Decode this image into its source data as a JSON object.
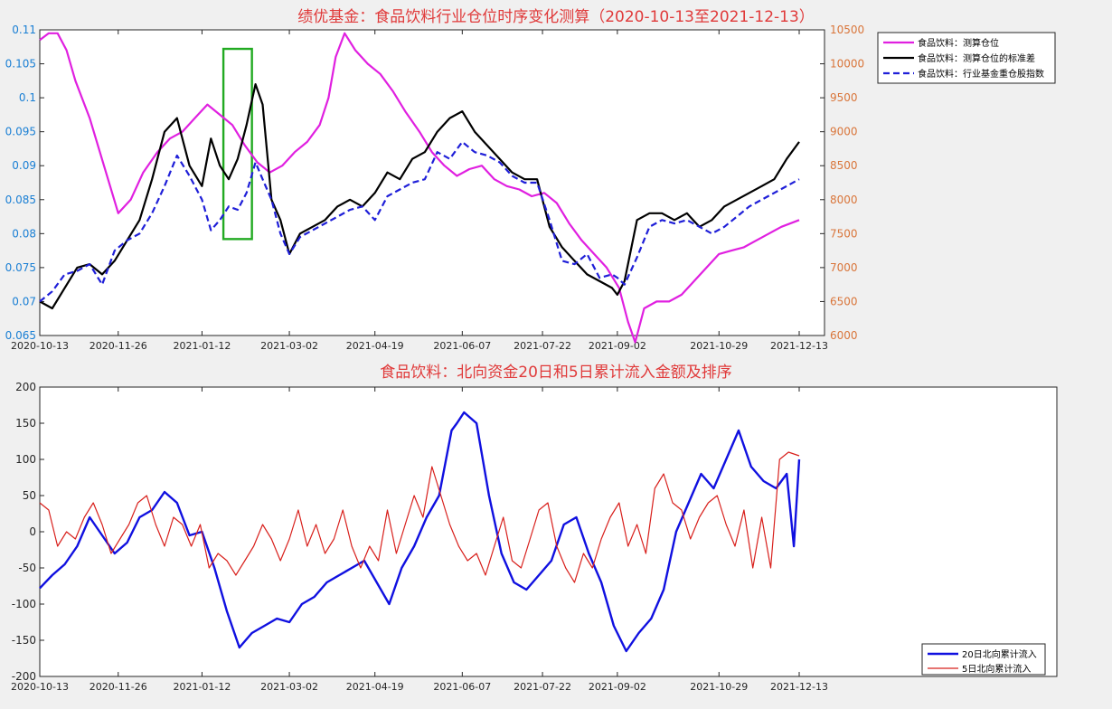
{
  "chart_data": [
    {
      "type": "line",
      "title": "绩优基金：食品饮料行业仓位时序变化测算（2020-10-13至2021-12-13）",
      "x_ticks": [
        "2020-10-13",
        "2020-11-26",
        "2021-01-12",
        "2021-03-02",
        "2021-04-19",
        "2021-06-07",
        "2021-07-22",
        "2021-09-02",
        "2021-10-29",
        "2021-12-13"
      ],
      "x_range": [
        "2020-10-13",
        "2021-12-13"
      ],
      "y_left_ticks": [
        "0.065",
        "0.07",
        "0.075",
        "0.08",
        "0.085",
        "0.09",
        "0.095",
        "0.1",
        "0.105",
        "0.11"
      ],
      "y_left_lim": [
        0.065,
        0.11
      ],
      "y_right_ticks": [
        "6000",
        "6500",
        "7000",
        "7500",
        "8000",
        "8500",
        "9000",
        "9500",
        "10000",
        "10500"
      ],
      "y_right_lim": [
        6000,
        10500
      ],
      "legend": {
        "placement": "top-right"
      },
      "highlight_box": {
        "x": [
          "2021-01-24",
          "2021-02-09"
        ],
        "y": [
          0.0792,
          0.1072
        ],
        "color": "#22aa22"
      },
      "series": [
        {
          "name": "食品饮料：测算仓位",
          "axis": "left",
          "color": "#e020e0",
          "style": "solid",
          "x": [
            "2020-10-13",
            "2020-10-18",
            "2020-10-23",
            "2020-10-28",
            "2020-11-02",
            "2020-11-10",
            "2020-11-18",
            "2020-11-26",
            "2020-12-03",
            "2020-12-10",
            "2020-12-18",
            "2020-12-25",
            "2021-01-01",
            "2021-01-08",
            "2021-01-15",
            "2021-01-22",
            "2021-01-29",
            "2021-02-05",
            "2021-02-12",
            "2021-02-19",
            "2021-02-26",
            "2021-03-05",
            "2021-03-12",
            "2021-03-19",
            "2021-03-24",
            "2021-03-28",
            "2021-04-02",
            "2021-04-08",
            "2021-04-15",
            "2021-04-22",
            "2021-04-29",
            "2021-05-06",
            "2021-05-14",
            "2021-05-21",
            "2021-05-28",
            "2021-06-04",
            "2021-06-11",
            "2021-06-18",
            "2021-06-25",
            "2021-07-02",
            "2021-07-09",
            "2021-07-16",
            "2021-07-23",
            "2021-07-30",
            "2021-08-06",
            "2021-08-13",
            "2021-08-20",
            "2021-08-27",
            "2021-09-03",
            "2021-09-08",
            "2021-09-12",
            "2021-09-17",
            "2021-09-24",
            "2021-10-01",
            "2021-10-08",
            "2021-10-15",
            "2021-10-22",
            "2021-10-29",
            "2021-11-05",
            "2021-11-12",
            "2021-11-19",
            "2021-11-26",
            "2021-12-03",
            "2021-12-13"
          ],
          "y": [
            0.1085,
            0.1095,
            0.1095,
            0.107,
            0.1025,
            0.097,
            0.09,
            0.083,
            0.085,
            0.089,
            0.092,
            0.094,
            0.095,
            0.097,
            0.099,
            0.0975,
            0.096,
            0.093,
            0.0905,
            0.089,
            0.09,
            0.092,
            0.0935,
            0.096,
            0.1,
            0.106,
            0.1095,
            0.107,
            0.105,
            0.1035,
            0.101,
            0.098,
            0.095,
            0.092,
            0.09,
            0.0885,
            0.0895,
            0.09,
            0.088,
            0.087,
            0.0865,
            0.0855,
            0.086,
            0.0845,
            0.0815,
            0.079,
            0.077,
            0.075,
            0.072,
            0.067,
            0.064,
            0.069,
            0.07,
            0.07,
            0.071,
            0.073,
            0.075,
            0.077,
            0.0775,
            0.078,
            0.079,
            0.08,
            0.081,
            0.082
          ]
        },
        {
          "name": "食品饮料：测算仓位的标准差",
          "axis": "left",
          "color": "#000000",
          "style": "solid",
          "x": [
            "2020-10-13",
            "2020-10-20",
            "2020-10-27",
            "2020-11-03",
            "2020-11-10",
            "2020-11-17",
            "2020-11-24",
            "2020-12-01",
            "2020-12-08",
            "2020-12-15",
            "2020-12-22",
            "2020-12-29",
            "2021-01-05",
            "2021-01-12",
            "2021-01-17",
            "2021-01-22",
            "2021-01-27",
            "2021-02-01",
            "2021-02-06",
            "2021-02-11",
            "2021-02-15",
            "2021-02-20",
            "2021-02-25",
            "2021-03-02",
            "2021-03-08",
            "2021-03-15",
            "2021-03-22",
            "2021-03-29",
            "2021-04-05",
            "2021-04-12",
            "2021-04-19",
            "2021-04-26",
            "2021-05-03",
            "2021-05-10",
            "2021-05-17",
            "2021-05-24",
            "2021-05-31",
            "2021-06-07",
            "2021-06-14",
            "2021-06-21",
            "2021-06-28",
            "2021-07-05",
            "2021-07-12",
            "2021-07-19",
            "2021-07-26",
            "2021-08-02",
            "2021-08-09",
            "2021-08-16",
            "2021-08-23",
            "2021-08-30",
            "2021-09-02",
            "2021-09-06",
            "2021-09-13",
            "2021-09-20",
            "2021-09-27",
            "2021-10-04",
            "2021-10-11",
            "2021-10-18",
            "2021-10-25",
            "2021-11-01",
            "2021-11-08",
            "2021-11-15",
            "2021-11-22",
            "2021-11-29",
            "2021-12-06",
            "2021-12-13"
          ],
          "y": [
            0.07,
            0.069,
            0.072,
            0.075,
            0.0755,
            0.074,
            0.076,
            0.079,
            0.082,
            0.088,
            0.095,
            0.097,
            0.09,
            0.087,
            0.094,
            0.09,
            0.088,
            0.091,
            0.096,
            0.102,
            0.099,
            0.085,
            0.082,
            0.077,
            0.08,
            0.081,
            0.082,
            0.084,
            0.085,
            0.084,
            0.086,
            0.089,
            0.088,
            0.091,
            0.092,
            0.095,
            0.097,
            0.098,
            0.095,
            0.093,
            0.091,
            0.089,
            0.088,
            0.088,
            0.081,
            0.078,
            0.076,
            0.074,
            0.073,
            0.072,
            0.071,
            0.073,
            0.082,
            0.083,
            0.083,
            0.082,
            0.083,
            0.081,
            0.082,
            0.084,
            0.085,
            0.086,
            0.087,
            0.088,
            0.091,
            0.0935
          ]
        },
        {
          "name": "食品饮料：行业基金重仓股指数",
          "axis": "right",
          "color": "#1f1fd8",
          "style": "dashed",
          "x": [
            "2020-10-13",
            "2020-10-20",
            "2020-10-27",
            "2020-11-03",
            "2020-11-10",
            "2020-11-17",
            "2020-11-24",
            "2020-12-01",
            "2020-12-08",
            "2020-12-15",
            "2020-12-22",
            "2020-12-29",
            "2021-01-05",
            "2021-01-12",
            "2021-01-17",
            "2021-01-22",
            "2021-01-27",
            "2021-02-01",
            "2021-02-06",
            "2021-02-11",
            "2021-02-15",
            "2021-02-20",
            "2021-02-25",
            "2021-03-02",
            "2021-03-08",
            "2021-03-15",
            "2021-03-22",
            "2021-03-29",
            "2021-04-05",
            "2021-04-12",
            "2021-04-19",
            "2021-04-26",
            "2021-05-03",
            "2021-05-10",
            "2021-05-17",
            "2021-05-24",
            "2021-05-31",
            "2021-06-07",
            "2021-06-14",
            "2021-06-21",
            "2021-06-28",
            "2021-07-05",
            "2021-07-12",
            "2021-07-19",
            "2021-07-26",
            "2021-08-02",
            "2021-08-09",
            "2021-08-16",
            "2021-08-23",
            "2021-08-30",
            "2021-09-02",
            "2021-09-06",
            "2021-09-13",
            "2021-09-20",
            "2021-09-27",
            "2021-10-04",
            "2021-10-11",
            "2021-10-18",
            "2021-10-25",
            "2021-11-01",
            "2021-11-08",
            "2021-11-15",
            "2021-11-22",
            "2021-11-29",
            "2021-12-06",
            "2021-12-13"
          ],
          "y": [
            6500,
            6650,
            6900,
            6950,
            7050,
            6750,
            7250,
            7400,
            7500,
            7800,
            8200,
            8650,
            8350,
            8000,
            7550,
            7700,
            7900,
            7850,
            8100,
            8550,
            8300,
            8000,
            7500,
            7200,
            7450,
            7550,
            7650,
            7750,
            7850,
            7900,
            7700,
            8050,
            8150,
            8250,
            8300,
            8700,
            8600,
            8850,
            8700,
            8650,
            8550,
            8350,
            8250,
            8250,
            7700,
            7100,
            7050,
            7200,
            6850,
            6900,
            6850,
            6750,
            7150,
            7600,
            7700,
            7650,
            7700,
            7600,
            7500,
            7600,
            7750,
            7900,
            8000,
            8100,
            8200,
            8300
          ]
        }
      ]
    },
    {
      "type": "line",
      "title": "食品饮料：北向资金20日和5日累计流入金额及排序",
      "x_ticks": [
        "2020-10-13",
        "2020-11-26",
        "2021-01-12",
        "2021-03-02",
        "2021-04-19",
        "2021-06-07",
        "2021-07-22",
        "2021-09-02",
        "2021-10-29",
        "2021-12-13"
      ],
      "x_range": [
        "2020-10-13",
        "2021-12-13"
      ],
      "y_ticks": [
        "-200",
        "-150",
        "-100",
        "-50",
        "0",
        "50",
        "100",
        "150",
        "200"
      ],
      "ylim": [
        -200,
        200
      ],
      "legend": {
        "placement": "bottom-right"
      },
      "series": [
        {
          "name": "20日北向累计流入",
          "color": "#1010e0",
          "width": 2.4,
          "x": [
            "2020-10-13",
            "2020-10-20",
            "2020-10-27",
            "2020-11-03",
            "2020-11-10",
            "2020-11-17",
            "2020-11-24",
            "2020-12-01",
            "2020-12-08",
            "2020-12-15",
            "2020-12-22",
            "2020-12-29",
            "2021-01-05",
            "2021-01-12",
            "2021-01-19",
            "2021-01-26",
            "2021-02-02",
            "2021-02-09",
            "2021-02-16",
            "2021-02-23",
            "2021-03-02",
            "2021-03-09",
            "2021-03-16",
            "2021-03-23",
            "2021-03-30",
            "2021-04-06",
            "2021-04-13",
            "2021-04-20",
            "2021-04-27",
            "2021-05-04",
            "2021-05-11",
            "2021-05-18",
            "2021-05-25",
            "2021-06-01",
            "2021-06-04",
            "2021-06-08",
            "2021-06-15",
            "2021-06-22",
            "2021-06-29",
            "2021-07-06",
            "2021-07-13",
            "2021-07-20",
            "2021-07-27",
            "2021-08-03",
            "2021-08-10",
            "2021-08-17",
            "2021-08-24",
            "2021-08-31",
            "2021-09-07",
            "2021-09-14",
            "2021-09-21",
            "2021-09-28",
            "2021-10-05",
            "2021-10-12",
            "2021-10-19",
            "2021-10-26",
            "2021-11-02",
            "2021-11-09",
            "2021-11-16",
            "2021-11-23",
            "2021-11-30",
            "2021-12-06",
            "2021-12-10",
            "2021-12-13"
          ],
          "y": [
            -78,
            -60,
            -45,
            -20,
            20,
            -5,
            -30,
            -15,
            20,
            30,
            55,
            40,
            -5,
            0,
            -50,
            -110,
            -160,
            -140,
            -130,
            -120,
            -125,
            -100,
            -90,
            -70,
            -60,
            -50,
            -40,
            -70,
            -100,
            -50,
            -20,
            20,
            50,
            140,
            150,
            165,
            150,
            50,
            -30,
            -70,
            -80,
            -60,
            -40,
            10,
            20,
            -30,
            -70,
            -130,
            -165,
            -140,
            -120,
            -80,
            0,
            40,
            80,
            60,
            100,
            140,
            90,
            70,
            60,
            80,
            -20,
            100
          ]
        },
        {
          "name": "5日北向累计流入",
          "color": "#d8201c",
          "width": 1.2,
          "x": [
            "2020-10-13",
            "2020-10-18",
            "2020-10-23",
            "2020-10-28",
            "2020-11-02",
            "2020-11-07",
            "2020-11-12",
            "2020-11-17",
            "2020-11-22",
            "2020-11-27",
            "2020-12-02",
            "2020-12-07",
            "2020-12-12",
            "2020-12-17",
            "2020-12-22",
            "2020-12-27",
            "2021-01-01",
            "2021-01-06",
            "2021-01-11",
            "2021-01-16",
            "2021-01-21",
            "2021-01-26",
            "2021-01-31",
            "2021-02-05",
            "2021-02-10",
            "2021-02-15",
            "2021-02-20",
            "2021-02-25",
            "2021-03-02",
            "2021-03-07",
            "2021-03-12",
            "2021-03-17",
            "2021-03-22",
            "2021-03-27",
            "2021-04-01",
            "2021-04-06",
            "2021-04-11",
            "2021-04-16",
            "2021-04-21",
            "2021-04-26",
            "2021-05-01",
            "2021-05-06",
            "2021-05-11",
            "2021-05-16",
            "2021-05-21",
            "2021-05-26",
            "2021-05-31",
            "2021-06-05",
            "2021-06-10",
            "2021-06-15",
            "2021-06-20",
            "2021-06-25",
            "2021-06-30",
            "2021-07-05",
            "2021-07-10",
            "2021-07-15",
            "2021-07-20",
            "2021-07-25",
            "2021-07-30",
            "2021-08-04",
            "2021-08-09",
            "2021-08-14",
            "2021-08-19",
            "2021-08-24",
            "2021-08-29",
            "2021-09-03",
            "2021-09-08",
            "2021-09-13",
            "2021-09-18",
            "2021-09-23",
            "2021-09-28",
            "2021-10-03",
            "2021-10-08",
            "2021-10-13",
            "2021-10-18",
            "2021-10-23",
            "2021-10-28",
            "2021-11-02",
            "2021-11-07",
            "2021-11-12",
            "2021-11-17",
            "2021-11-22",
            "2021-11-27",
            "2021-12-02",
            "2021-12-07",
            "2021-12-13"
          ],
          "y": [
            40,
            30,
            -20,
            0,
            -10,
            20,
            40,
            10,
            -30,
            -10,
            10,
            40,
            50,
            10,
            -20,
            20,
            10,
            -20,
            10,
            -50,
            -30,
            -40,
            -60,
            -40,
            -20,
            10,
            -10,
            -40,
            -10,
            30,
            -20,
            10,
            -30,
            -10,
            30,
            -20,
            -50,
            -20,
            -40,
            30,
            -30,
            10,
            50,
            20,
            90,
            50,
            10,
            -20,
            -40,
            -30,
            -60,
            -20,
            20,
            -40,
            -50,
            -10,
            30,
            40,
            -20,
            -50,
            -70,
            -30,
            -50,
            -10,
            20,
            40,
            -20,
            10,
            -30,
            60,
            80,
            40,
            30,
            -10,
            20,
            40,
            50,
            10,
            -20,
            30,
            -50,
            20,
            -50,
            100,
            110,
            105
          ]
        }
      ]
    }
  ]
}
